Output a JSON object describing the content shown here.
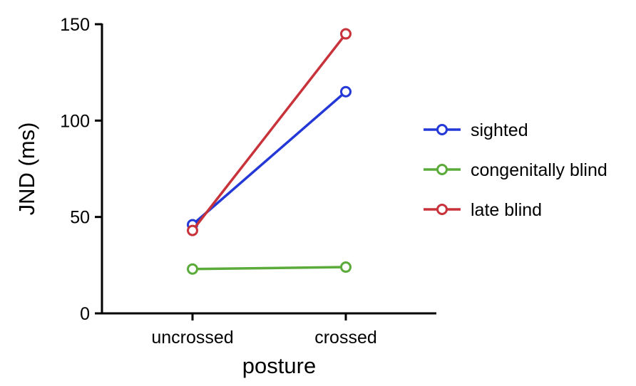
{
  "chart_data": {
    "type": "line",
    "title": "",
    "xlabel": "posture",
    "ylabel": "JND (ms)",
    "categories": [
      "uncrossed",
      "crossed"
    ],
    "ylim": [
      0,
      150
    ],
    "yticks": [
      0,
      50,
      100,
      150
    ],
    "grid": false,
    "legend_position": "right",
    "series": [
      {
        "name": "sighted",
        "color": "#2338d6",
        "values": [
          46,
          115
        ]
      },
      {
        "name": "congenitally blind",
        "color": "#5aab3a",
        "values": [
          23,
          24
        ]
      },
      {
        "name": "late blind",
        "color": "#c8323a",
        "values": [
          43,
          145
        ]
      }
    ]
  }
}
